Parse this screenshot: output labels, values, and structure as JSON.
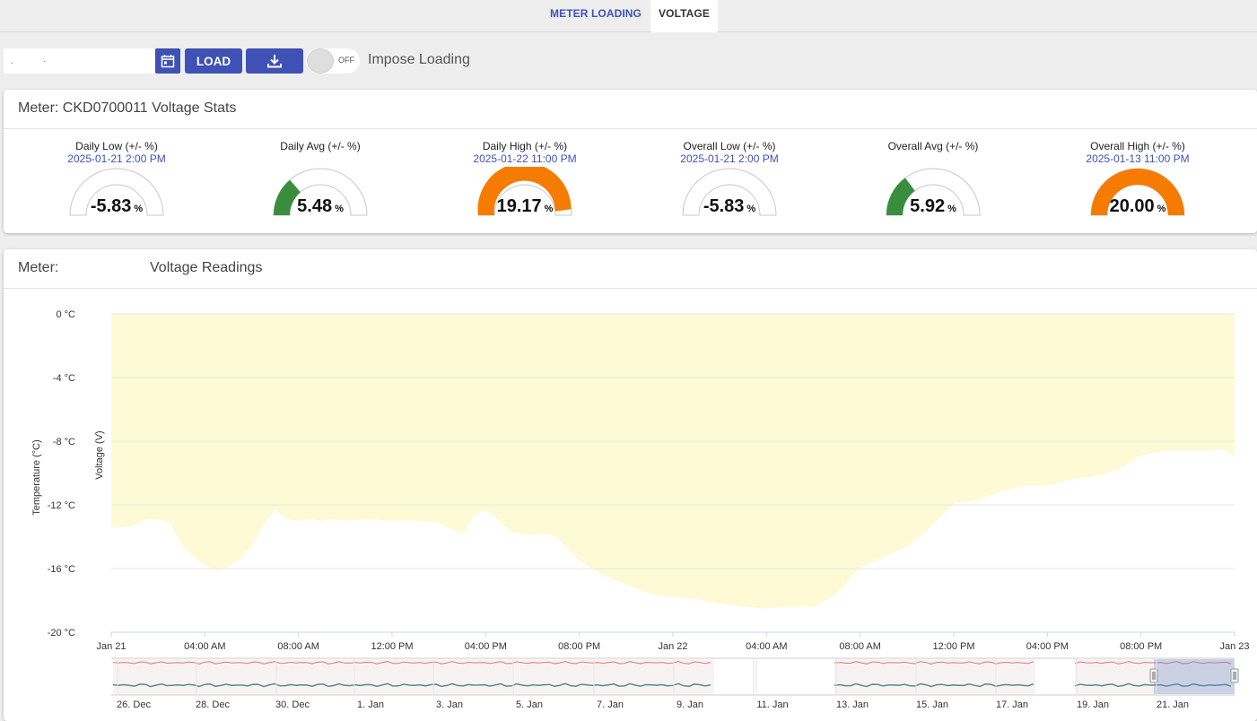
{
  "tabs": [
    {
      "label": "METER LOADING",
      "active": false
    },
    {
      "label": "VOLTAGE",
      "active": true
    }
  ],
  "toolbar": {
    "date_value": ".            ·",
    "load_label": "LOAD",
    "toggle_state": "OFF",
    "impose_label": "Impose Loading"
  },
  "stats": {
    "header": "Meter: CKD0700011 Voltage Stats",
    "gauges": [
      {
        "title": "Daily Low (+/- %)",
        "date": "2025-01-21 2:00 PM",
        "value": "-5.83",
        "unit": "%",
        "fill": 0,
        "color": "#388e3c"
      },
      {
        "title": "Daily Avg (+/- %)",
        "date": "",
        "value": "5.48",
        "unit": "%",
        "fill": 0.274,
        "color": "#388e3c"
      },
      {
        "title": "Daily High (+/- %)",
        "date": "2025-01-22 11:00 PM",
        "value": "19.17",
        "unit": "%",
        "fill": 0.9585,
        "color": "#f57c00"
      },
      {
        "title": "Overall Low (+/- %)",
        "date": "2025-01-21 2:00 PM",
        "value": "-5.83",
        "unit": "%",
        "fill": 0,
        "color": "#388e3c"
      },
      {
        "title": "Overall Avg (+/- %)",
        "date": "",
        "value": "5.92",
        "unit": "%",
        "fill": 0.296,
        "color": "#388e3c"
      },
      {
        "title": "Overall High (+/- %)",
        "date": "2025-01-13 11:00 PM",
        "value": "20.00",
        "unit": "%",
        "fill": 1.0,
        "color": "#f57c00"
      }
    ]
  },
  "readings": {
    "meter_label": "Meter:",
    "title": "Voltage Readings"
  },
  "chart_data": {
    "type": "area",
    "ylabel_left": "Temperature (°C)",
    "ylabel_inner": "Voltage (V)",
    "ylim": [
      -20,
      0
    ],
    "y_ticks": [
      "0 °C",
      "-4 °C",
      "-8 °C",
      "-12 °C",
      "-16 °C",
      "-20 °C"
    ],
    "y_tick_values": [
      0,
      -4,
      -8,
      -12,
      -16,
      -20
    ],
    "x_ticks": [
      "Jan 21",
      "04:00 AM",
      "08:00 AM",
      "12:00 PM",
      "04:00 PM",
      "08:00 PM",
      "Jan 22",
      "04:00 AM",
      "08:00 AM",
      "12:00 PM",
      "04:00 PM",
      "08:00 PM",
      "Jan 23"
    ],
    "x_tick_hours": [
      0,
      4,
      8,
      12,
      16,
      20,
      24,
      28,
      32,
      36,
      40,
      44,
      48
    ],
    "area_color": "#fdfad5",
    "series": [
      {
        "hours": [
          0,
          0.5,
          1,
          1.5,
          2,
          2.5,
          3,
          3.5,
          4,
          4.5,
          5,
          5.5,
          6,
          6.5,
          7,
          7.5,
          8,
          8.5,
          9,
          9.5,
          10,
          11,
          12,
          13,
          14,
          15,
          15.5,
          16,
          16.5,
          17,
          17.5,
          18,
          18.5,
          19,
          20,
          21,
          22,
          23,
          24,
          25,
          26,
          27,
          28,
          29,
          30,
          31,
          32,
          33,
          34,
          35,
          36,
          37,
          38,
          39,
          40,
          41,
          42,
          43,
          44,
          45,
          46,
          47,
          47.5,
          48
        ],
        "values": [
          -13.4,
          -13.4,
          -13.3,
          -12.9,
          -12.9,
          -13.1,
          -14.5,
          -15.2,
          -15.8,
          -16.1,
          -15.9,
          -15.4,
          -14.6,
          -13.3,
          -12.3,
          -12.9,
          -13.0,
          -12.9,
          -13.0,
          -12.9,
          -13.0,
          -12.9,
          -13.0,
          -13.0,
          -13.1,
          -13.9,
          -12.7,
          -12.3,
          -12.9,
          -13.6,
          -13.8,
          -13.9,
          -13.8,
          -14.0,
          -15.5,
          -16.4,
          -17.0,
          -17.6,
          -17.8,
          -17.9,
          -18.2,
          -18.4,
          -18.5,
          -18.4,
          -18.4,
          -17.6,
          -15.9,
          -15.3,
          -14.6,
          -13.4,
          -11.9,
          -11.7,
          -11.2,
          -10.8,
          -10.8,
          -10.4,
          -10.2,
          -9.8,
          -8.9,
          -8.6,
          -8.6,
          -8.6,
          -8.5,
          -9.0
        ]
      }
    ],
    "navigator": {
      "labels": [
        "26. Dec",
        "28. Dec",
        "30. Dec",
        "1. Jan",
        "3. Jan",
        "5. Jan",
        "7. Jan",
        "9. Jan",
        "11. Jan",
        "13. Jan",
        "15. Jan",
        "17. Jan",
        "19. Jan",
        "21. Jan"
      ]
    }
  }
}
